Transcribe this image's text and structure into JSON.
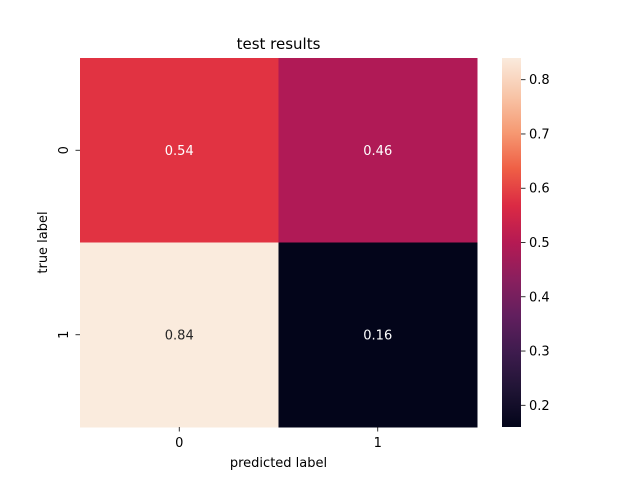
{
  "chart_data": {
    "type": "heatmap",
    "title": "test results",
    "xlabel": "predicted label",
    "ylabel": "true label",
    "x_categories": [
      "0",
      "1"
    ],
    "y_categories": [
      "0",
      "1"
    ],
    "values": [
      [
        0.54,
        0.46
      ],
      [
        0.84,
        0.16
      ]
    ],
    "cell_labels": [
      [
        "0.54",
        "0.46"
      ],
      [
        "0.84",
        "0.16"
      ]
    ],
    "colorbar": {
      "range": [
        0.16,
        0.84
      ],
      "ticks": [
        0.2,
        0.3,
        0.4,
        0.5,
        0.6,
        0.7,
        0.8
      ],
      "tick_labels": [
        "0.2",
        "0.3",
        "0.4",
        "0.5",
        "0.6",
        "0.7",
        "0.8"
      ]
    },
    "colormap": "rocket",
    "colors": {
      "0.54": "#e13342",
      "0.46": "#b01a56",
      "0.84": "#faebdd",
      "0.16": "#03051a"
    },
    "annotation_colors": {
      "light": "#ffffff",
      "dark": "#262626"
    }
  }
}
